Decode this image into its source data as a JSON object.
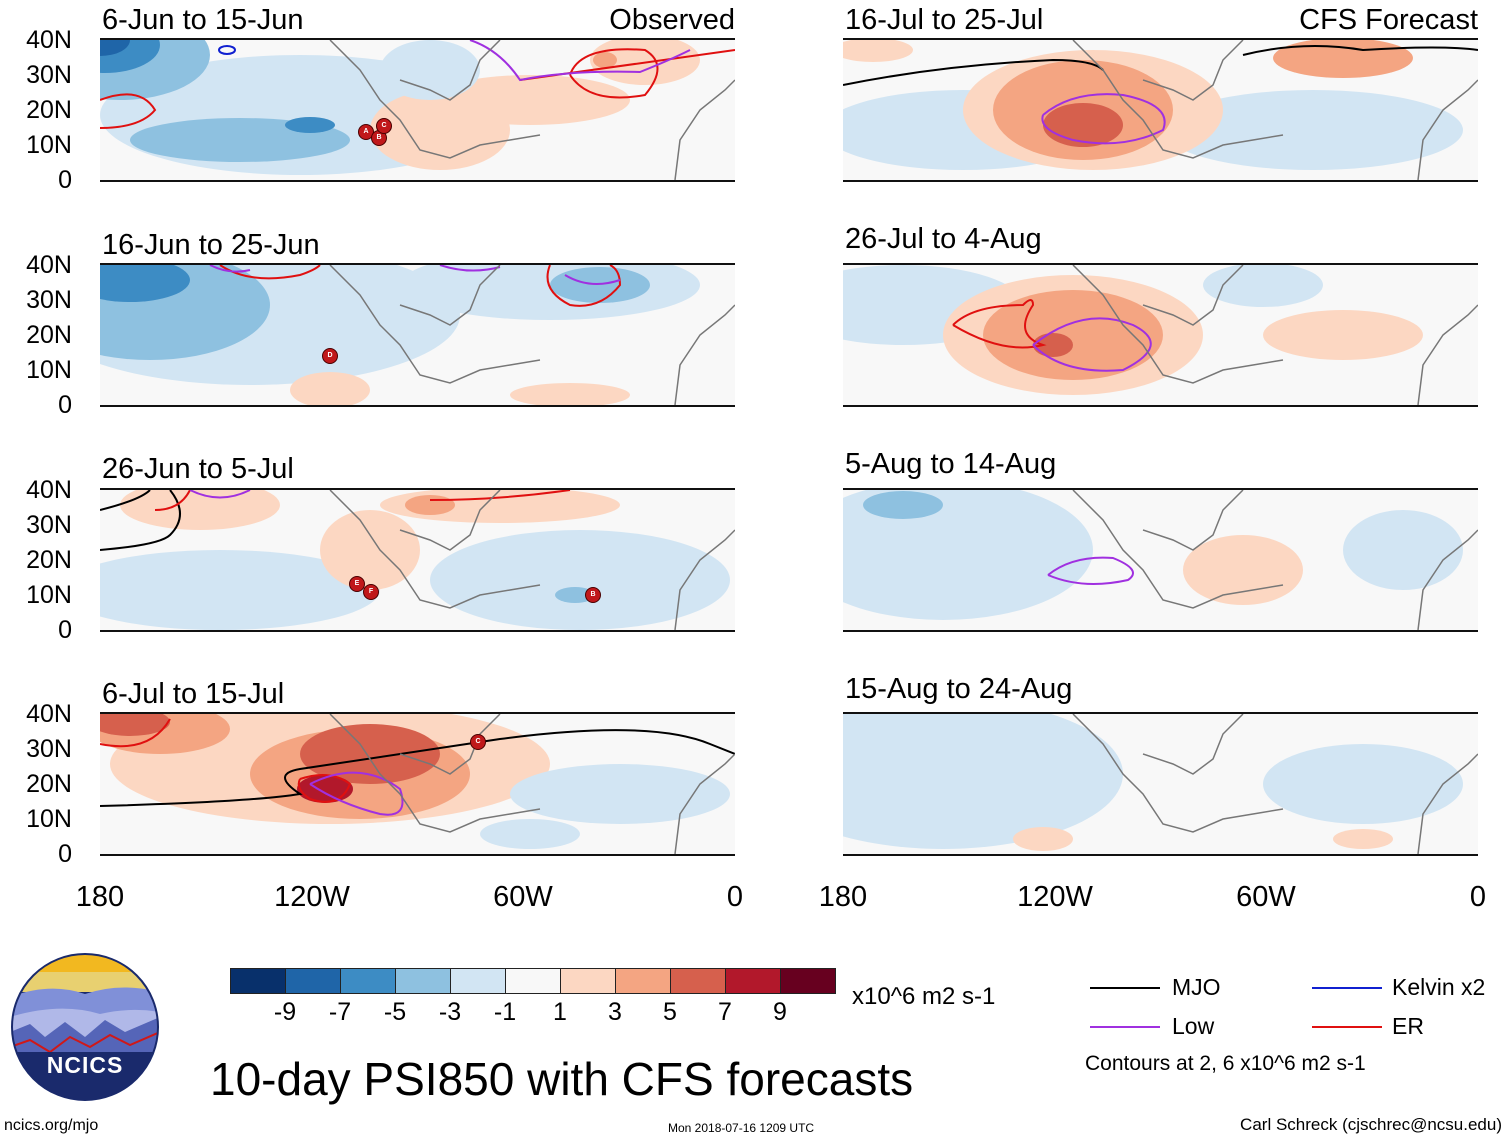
{
  "panels": [
    {
      "title": "6-Jun to 15-Jun",
      "label": "Observed"
    },
    {
      "title": "16-Jun to 25-Jun",
      "label": ""
    },
    {
      "title": "26-Jun to 5-Jul",
      "label": ""
    },
    {
      "title": "6-Jul to 15-Jul",
      "label": ""
    },
    {
      "title": "16-Jul to 25-Jul",
      "label": "CFS Forecast"
    },
    {
      "title": "26-Jul to 4-Aug",
      "label": ""
    },
    {
      "title": "5-Aug to 14-Aug",
      "label": ""
    },
    {
      "title": "15-Aug to 24-Aug",
      "label": ""
    }
  ],
  "lat_labels": [
    "40N",
    "30N",
    "20N",
    "10N",
    "0"
  ],
  "lon_labels": [
    "180",
    "120W",
    "60W",
    "0"
  ],
  "colorbar": {
    "colors": [
      "#08306b",
      "#1f65a8",
      "#3d8cc4",
      "#8ec1e0",
      "#d2e5f3",
      "#f8f8f8",
      "#fcd7c2",
      "#f4a582",
      "#d6604d",
      "#b2182b",
      "#67001f"
    ],
    "ticks": [
      "-9",
      "-7",
      "-5",
      "-3",
      "-1",
      "1",
      "3",
      "5",
      "7",
      "9"
    ],
    "units": "x10^6 m2 s-1"
  },
  "title": "10-day PSI850 with CFS forecasts",
  "legend": [
    {
      "name": "MJO",
      "color": "#000000"
    },
    {
      "name": "Kelvin x2",
      "color": "#1020d0"
    },
    {
      "name": "Low",
      "color": "#a030e0"
    },
    {
      "name": "ER",
      "color": "#e01010"
    }
  ],
  "contours_note": "Contours at 2, 6 x10^6 m2 s-1",
  "footer": {
    "left": "ncics.org/mjo",
    "middle": "Mon 2018-07-16 1209 UTC",
    "right": "Carl Schreck (cjschrec@ncsu.edu)"
  },
  "logo_text": "NCICS",
  "storms": [
    {
      "panel": 0,
      "label": "A"
    },
    {
      "panel": 0,
      "label": "B"
    },
    {
      "panel": 0,
      "label": "C"
    },
    {
      "panel": 1,
      "label": "D"
    },
    {
      "panel": 2,
      "label": "E"
    },
    {
      "panel": 2,
      "label": "F"
    },
    {
      "panel": 2,
      "label": "B"
    },
    {
      "panel": 3,
      "label": "C"
    }
  ]
}
